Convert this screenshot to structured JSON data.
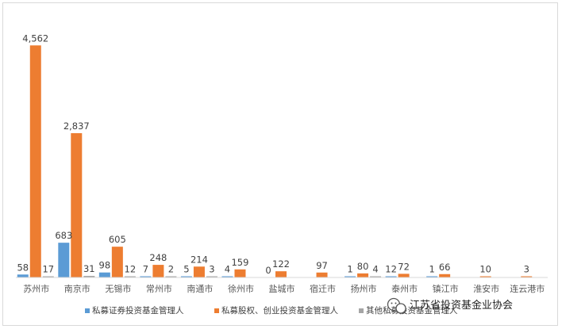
{
  "chart_data": {
    "type": "bar",
    "categories": [
      "苏州市",
      "南京市",
      "无锡市",
      "常州市",
      "南通市",
      "徐州市",
      "盐城市",
      "宿迁市",
      "扬州市",
      "泰州市",
      "镇江市",
      "淮安市",
      "连云港市"
    ],
    "series": [
      {
        "name": "私募证券投资基金管理人",
        "color": "#5b9bd5",
        "values": [
          58,
          683,
          98,
          7,
          5,
          4,
          0,
          null,
          1,
          12,
          1,
          null,
          null
        ]
      },
      {
        "name": "私募股权、创业投资基金管理人",
        "color": "#ed7d31",
        "values": [
          4562,
          2837,
          605,
          248,
          214,
          159,
          122,
          97,
          80,
          72,
          66,
          10,
          3
        ]
      },
      {
        "name": "其他私募投资基金管理人",
        "color": "#a5a5a5",
        "values": [
          17,
          31,
          12,
          2,
          3,
          null,
          null,
          null,
          4,
          null,
          null,
          null,
          null
        ]
      }
    ],
    "ylim": [
      0,
      4800
    ],
    "grid": false,
    "legend_position": "bottom"
  },
  "watermark": {
    "text": "江苏省投资基金业协会",
    "icon": "wechat-icon"
  }
}
